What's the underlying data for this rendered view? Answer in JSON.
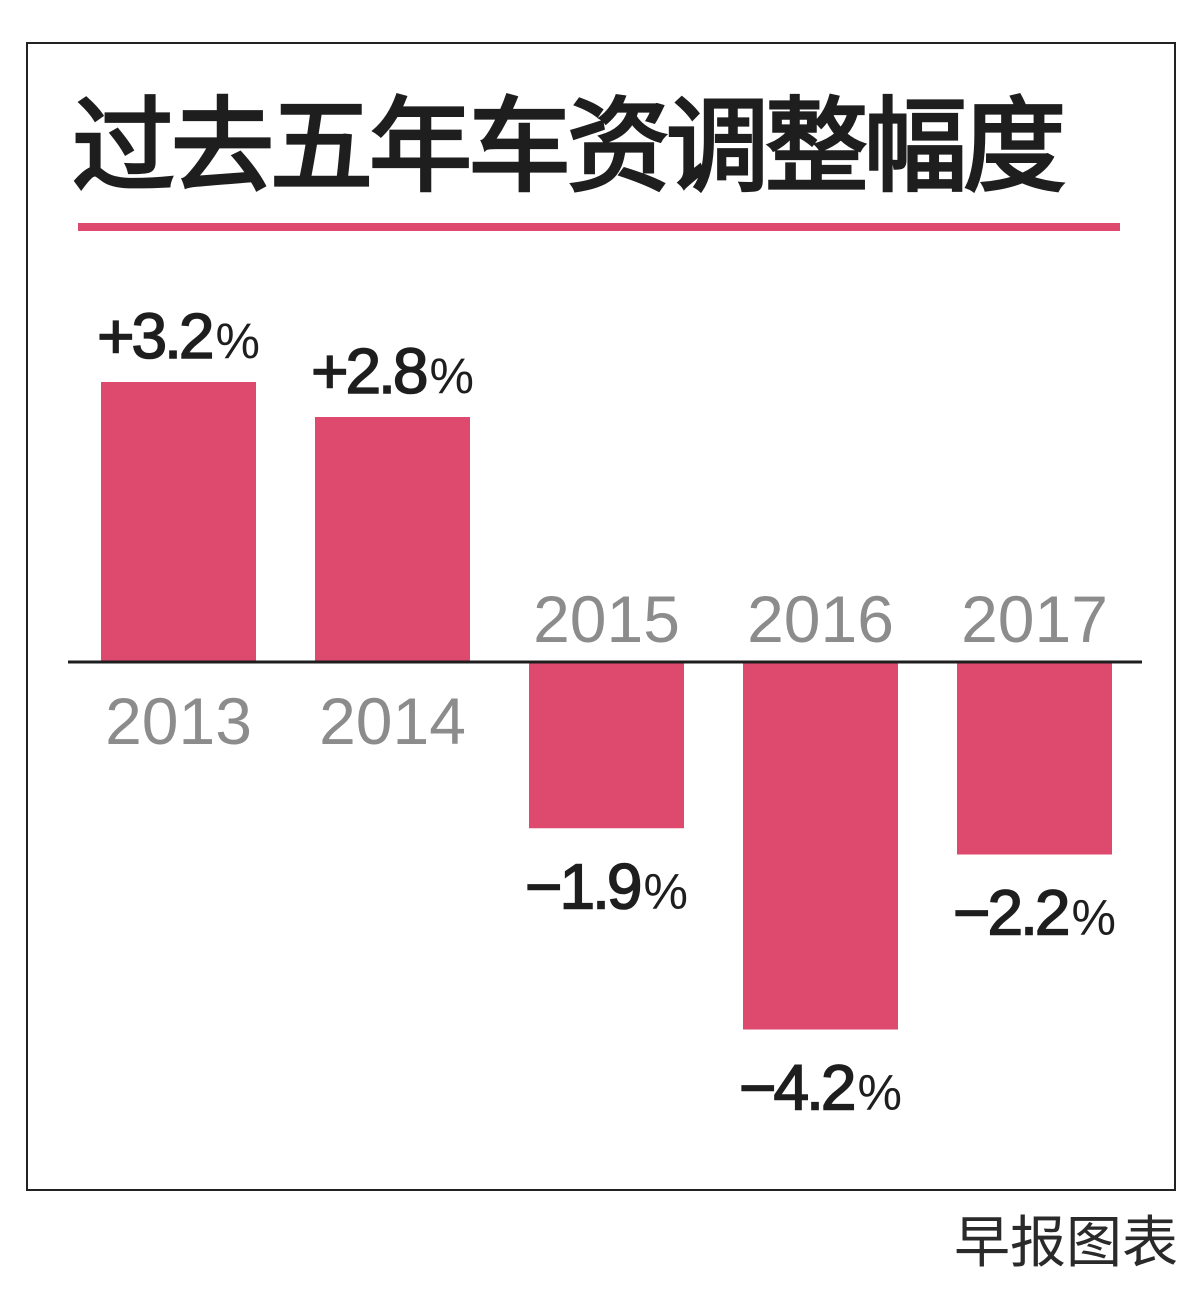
{
  "chart_data": {
    "type": "bar",
    "title": "过去五年车资调整幅度",
    "categories": [
      "2013",
      "2014",
      "2015",
      "2016",
      "2017"
    ],
    "values": [
      3.2,
      2.8,
      -1.9,
      -4.2,
      -2.2
    ],
    "value_labels": [
      "+3.2",
      "+2.8",
      "−1.9",
      "−4.2",
      "−2.2"
    ],
    "unit": "%",
    "ylim": [
      -4.5,
      3.5
    ],
    "grid": false,
    "bar_color": "#dd4a6e"
  },
  "source": "早报图表"
}
